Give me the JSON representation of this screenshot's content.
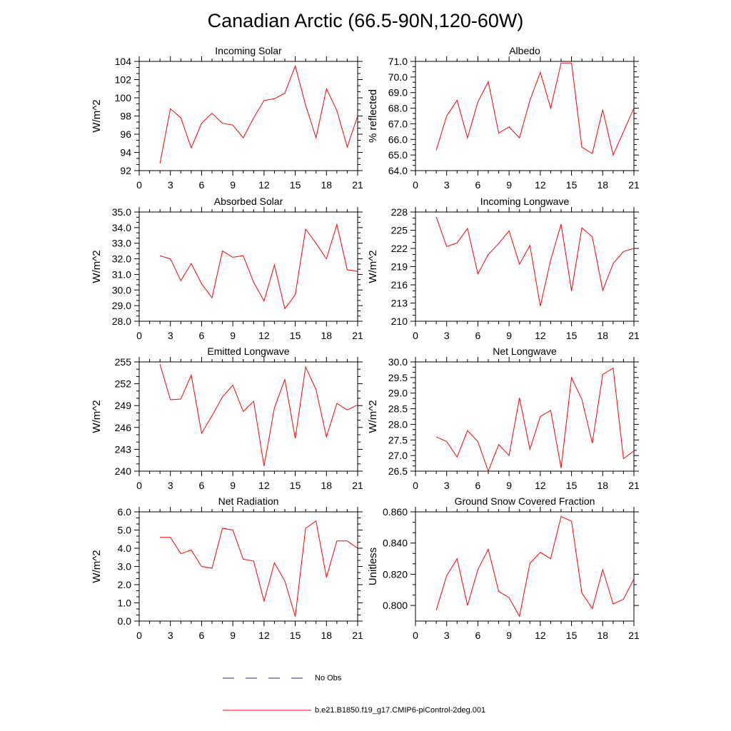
{
  "page_title": "Canadian Arctic (66.5-90N,120-60W)",
  "colors": {
    "model_line": "#ff0000",
    "obs_line": "#2a2ab4",
    "axis": "#000000"
  },
  "legend": [
    {
      "label": "No Obs",
      "style": "dashed",
      "color": "#2a2ab4"
    },
    {
      "label": "b.e21.B1850.f19_g17.CMIP6-piControl-2deg.001",
      "style": "solid",
      "color": "#ff0000"
    }
  ],
  "chart_data": [
    {
      "type": "line",
      "title": "Incoming Solar",
      "ylabel": "W/m^2",
      "xlim": [
        0,
        21
      ],
      "ylim": [
        92,
        104
      ],
      "xticks": [
        "0",
        "3",
        "6",
        "9",
        "12",
        "15",
        "18",
        "21"
      ],
      "yticks": [
        "92",
        "94",
        "96",
        "98",
        "100",
        "102",
        "104"
      ],
      "x": [
        2,
        3,
        4,
        5,
        6,
        7,
        8,
        9,
        10,
        11,
        12,
        13,
        14,
        15,
        16,
        17,
        18,
        19,
        20,
        21
      ],
      "values": [
        92.8,
        98.8,
        97.8,
        94.5,
        97.2,
        98.3,
        97.2,
        97.0,
        95.6,
        97.8,
        99.7,
        99.9,
        100.5,
        103.5,
        99.2,
        95.6,
        101.0,
        98.6,
        94.6,
        98.0
      ]
    },
    {
      "type": "line",
      "title": "Albedo",
      "ylabel": "% reflected",
      "xlim": [
        0,
        21
      ],
      "ylim": [
        64.0,
        71.0
      ],
      "xticks": [
        "0",
        "3",
        "6",
        "9",
        "12",
        "15",
        "18",
        "21"
      ],
      "yticks": [
        "64.0",
        "65.0",
        "66.0",
        "67.0",
        "68.0",
        "69.0",
        "70.0",
        "71.0"
      ],
      "x": [
        2,
        3,
        4,
        5,
        6,
        7,
        8,
        9,
        10,
        11,
        12,
        13,
        14,
        15,
        16,
        17,
        18,
        19,
        20,
        21
      ],
      "values": [
        65.3,
        67.5,
        68.5,
        66.1,
        68.4,
        69.7,
        66.4,
        66.8,
        66.1,
        68.5,
        70.3,
        68.0,
        70.9,
        70.9,
        65.5,
        65.1,
        67.9,
        65.0,
        66.5,
        68.0
      ]
    },
    {
      "type": "line",
      "title": "Absorbed Solar",
      "ylabel": "W/m^2",
      "xlim": [
        0,
        21
      ],
      "ylim": [
        28.0,
        35.0
      ],
      "xticks": [
        "0",
        "3",
        "6",
        "9",
        "12",
        "15",
        "18",
        "21"
      ],
      "yticks": [
        "28.0",
        "29.0",
        "30.0",
        "31.0",
        "32.0",
        "33.0",
        "34.0",
        "35.0"
      ],
      "x": [
        2,
        3,
        4,
        5,
        6,
        7,
        8,
        9,
        10,
        11,
        12,
        13,
        14,
        15,
        16,
        17,
        18,
        19,
        20,
        21
      ],
      "values": [
        32.2,
        32.0,
        30.6,
        31.7,
        30.4,
        29.5,
        32.5,
        32.1,
        32.2,
        30.5,
        29.3,
        31.6,
        28.8,
        29.7,
        33.9,
        33.0,
        32.0,
        34.2,
        31.3,
        31.2
      ]
    },
    {
      "type": "line",
      "title": "Incoming Longwave",
      "ylabel": "W/m^2",
      "xlim": [
        0,
        21
      ],
      "ylim": [
        210,
        228
      ],
      "xticks": [
        "0",
        "3",
        "6",
        "9",
        "12",
        "15",
        "18",
        "21"
      ],
      "yticks": [
        "210",
        "213",
        "216",
        "219",
        "222",
        "225",
        "228"
      ],
      "x": [
        2,
        3,
        4,
        5,
        6,
        7,
        8,
        9,
        10,
        11,
        12,
        13,
        14,
        15,
        16,
        17,
        18,
        19,
        20,
        21
      ],
      "values": [
        227.2,
        222.3,
        222.9,
        225.3,
        217.8,
        221.0,
        222.8,
        224.9,
        219.4,
        222.5,
        212.5,
        220.1,
        226.0,
        215.0,
        225.4,
        223.9,
        215.1,
        219.5,
        221.5,
        222.0
      ]
    },
    {
      "type": "line",
      "title": "Emitted Longwave",
      "ylabel": "W/m^2",
      "xlim": [
        0,
        21
      ],
      "ylim": [
        240,
        255
      ],
      "xticks": [
        "0",
        "3",
        "6",
        "9",
        "12",
        "15",
        "18",
        "21"
      ],
      "yticks": [
        "240",
        "243",
        "246",
        "249",
        "252",
        "255"
      ],
      "x": [
        2,
        3,
        4,
        5,
        6,
        7,
        8,
        9,
        10,
        11,
        12,
        13,
        14,
        15,
        16,
        17,
        18,
        19,
        20,
        21
      ],
      "values": [
        254.7,
        249.8,
        249.9,
        253.2,
        245.2,
        247.6,
        250.2,
        251.8,
        248.2,
        249.6,
        240.7,
        248.7,
        252.6,
        244.5,
        254.3,
        251.2,
        244.7,
        249.3,
        248.4,
        249.1
      ]
    },
    {
      "type": "line",
      "title": "Net Longwave",
      "ylabel": "W/m^2",
      "xlim": [
        0,
        21
      ],
      "ylim": [
        26.5,
        30.0
      ],
      "xticks": [
        "0",
        "3",
        "6",
        "9",
        "12",
        "15",
        "18",
        "21"
      ],
      "yticks": [
        "26.5",
        "27.0",
        "27.5",
        "28.0",
        "28.5",
        "29.0",
        "29.5",
        "30.0"
      ],
      "x": [
        2,
        3,
        4,
        5,
        6,
        7,
        8,
        9,
        10,
        11,
        12,
        13,
        14,
        15,
        16,
        17,
        18,
        19,
        20,
        21
      ],
      "values": [
        27.6,
        27.45,
        26.95,
        27.8,
        27.45,
        26.5,
        27.35,
        27.0,
        28.85,
        27.2,
        28.25,
        28.45,
        26.6,
        29.5,
        28.8,
        27.4,
        29.6,
        29.8,
        26.9,
        27.15
      ]
    },
    {
      "type": "line",
      "title": "Net Radiation",
      "ylabel": "W/m^2",
      "xlim": [
        0,
        21
      ],
      "ylim": [
        0.0,
        6.0
      ],
      "xticks": [
        "0",
        "3",
        "6",
        "9",
        "12",
        "15",
        "18",
        "21"
      ],
      "yticks": [
        "0.0",
        "1.0",
        "2.0",
        "3.0",
        "4.0",
        "5.0",
        "6.0"
      ],
      "x": [
        2,
        3,
        4,
        5,
        6,
        7,
        8,
        9,
        10,
        11,
        12,
        13,
        14,
        15,
        16,
        17,
        18,
        19,
        20,
        21
      ],
      "values": [
        4.6,
        4.6,
        3.7,
        3.9,
        3.0,
        2.9,
        5.1,
        5.0,
        3.4,
        3.3,
        1.1,
        3.2,
        2.2,
        0.25,
        5.1,
        5.5,
        2.4,
        4.4,
        4.4,
        4.0
      ]
    },
    {
      "type": "line",
      "title": "Ground Snow Covered Fraction",
      "ylabel": "Unitless",
      "xlim": [
        0,
        21
      ],
      "ylim": [
        0.79,
        0.86
      ],
      "xticks": [
        "0",
        "3",
        "6",
        "9",
        "12",
        "15",
        "18",
        "21"
      ],
      "yticks": [
        "0.800",
        "0.820",
        "0.840",
        "0.860"
      ],
      "ytick_values": [
        0.8,
        0.82,
        0.84,
        0.86
      ],
      "x": [
        2,
        3,
        4,
        5,
        6,
        7,
        8,
        9,
        10,
        11,
        12,
        13,
        14,
        15,
        16,
        17,
        18,
        19,
        20,
        21
      ],
      "values": [
        0.797,
        0.819,
        0.83,
        0.8,
        0.823,
        0.836,
        0.809,
        0.805,
        0.793,
        0.827,
        0.834,
        0.83,
        0.857,
        0.854,
        0.808,
        0.798,
        0.823,
        0.801,
        0.804,
        0.817
      ]
    }
  ]
}
